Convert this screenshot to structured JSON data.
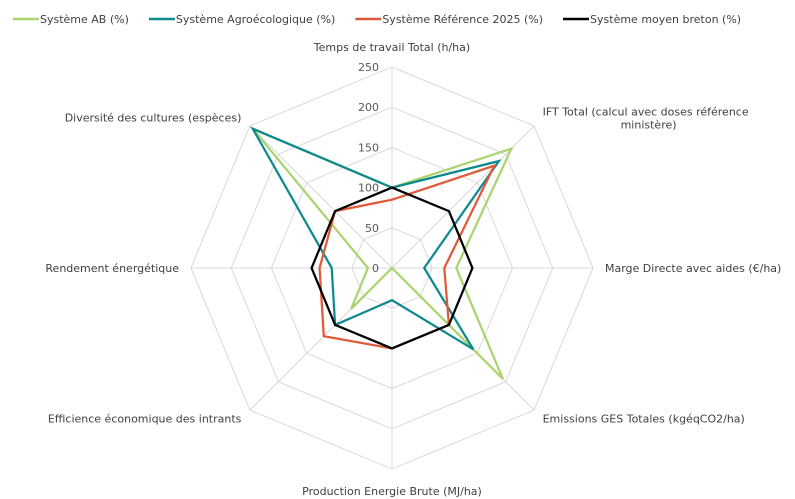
{
  "chart_data": {
    "type": "radar",
    "title": "",
    "axes": [
      "Temps de travail Total (h/ha)",
      "IFT Total (calcul avec doses référence|ministère)",
      "Marge Directe avec aides (€/ha)",
      "Emissions GES Totales (kgéqCO2/ha)",
      "Production Energie Brute (MJ/ha)",
      "Efficience économique des intrants",
      "Rendement énergétique",
      "Diversité des cultures (espèces)"
    ],
    "radial_ticks": [
      "0",
      "50",
      "100",
      "150",
      "200",
      "250"
    ],
    "rmin": 0,
    "rmax": 250,
    "legend_position": "top",
    "series": [
      {
        "name": "Système AB (%)",
        "color": "#a9d46f",
        "values": [
          100,
          210,
          80,
          195,
          0,
          72,
          30,
          245
        ]
      },
      {
        "name": "Système Agroécologique (%)",
        "color": "#0e8a8f",
        "values": [
          100,
          188,
          40,
          143,
          40,
          100,
          75,
          245
        ]
      },
      {
        "name": "Système Référence 2025 (%)",
        "color": "#e05a3a",
        "values": [
          85,
          180,
          65,
          100,
          100,
          120,
          90,
          100
        ]
      },
      {
        "name": "Système moyen breton (%)",
        "color": "#000000",
        "values": [
          100,
          100,
          100,
          100,
          100,
          100,
          100,
          100
        ]
      }
    ]
  }
}
